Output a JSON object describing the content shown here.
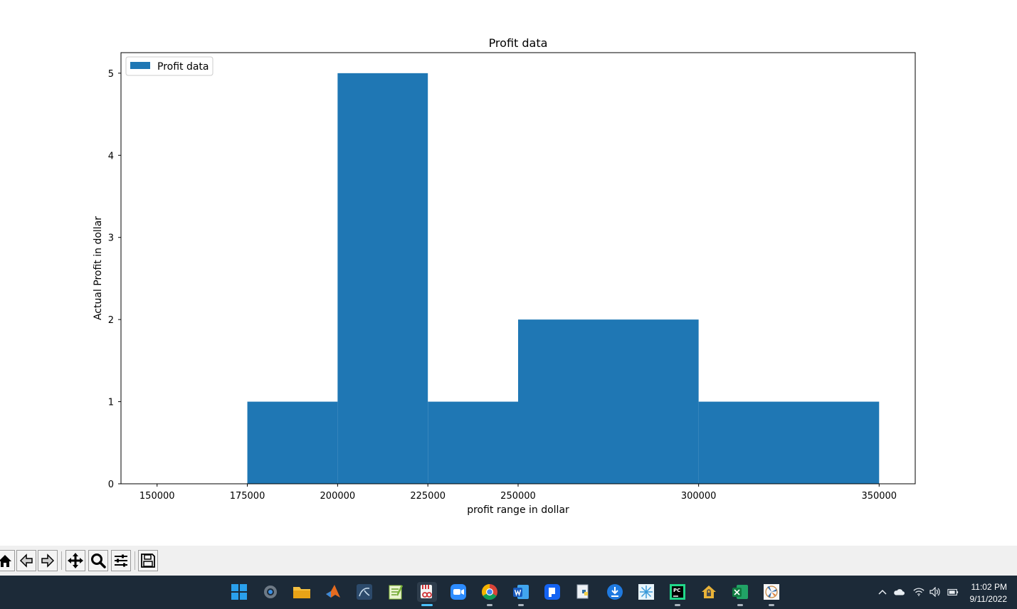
{
  "chart_data": {
    "type": "bar",
    "title": "Profit data",
    "xlabel": "profit range in dollar",
    "ylabel": "Actual Profit in dollar",
    "legend": {
      "entries": [
        "Profit data"
      ],
      "placement": "top-left"
    },
    "xlim": [
      140000,
      360000
    ],
    "ylim": [
      0,
      5.25
    ],
    "xticks": [
      "150000",
      "175000",
      "200000",
      "225000",
      "250000",
      "300000",
      "350000"
    ],
    "yticks": [
      "0",
      "1",
      "2",
      "3",
      "4",
      "5"
    ],
    "grid": false,
    "color": "#1f77b4",
    "series": [
      {
        "name": "Profit data",
        "values": [
          {
            "x0": 175000,
            "x1": 200000,
            "y": 1
          },
          {
            "x0": 200000,
            "x1": 225000,
            "y": 5
          },
          {
            "x0": 225000,
            "x1": 250000,
            "y": 1
          },
          {
            "x0": 250000,
            "x1": 300000,
            "y": 2
          },
          {
            "x0": 300000,
            "x1": 350000,
            "y": 1
          }
        ]
      }
    ]
  },
  "toolbar": {
    "buttons": [
      "home-icon",
      "back-icon",
      "forward-icon",
      "pan-icon",
      "zoom-icon",
      "configure-subplots-icon",
      "save-icon"
    ]
  },
  "taskbar": {
    "apps": [
      "start-icon",
      "settings-icon",
      "file-explorer-icon",
      "matlab-icon",
      "mysql-workbench-icon",
      "notepad-plus-plus-icon",
      "snipping-tool-icon",
      "zoom-app-icon",
      "chrome-icon",
      "word-icon",
      "app-icon",
      "python-icon",
      "update-icon",
      "snowflake-icon",
      "pycharm-icon",
      "vpn-icon",
      "excel-icon",
      "figure-window-icon"
    ],
    "tray_icons": [
      "chevron-up-icon",
      "cloud-icon",
      "wifi-icon",
      "volume-icon",
      "battery-icon"
    ],
    "time": "11:02 PM",
    "date": "9/11/2022"
  }
}
